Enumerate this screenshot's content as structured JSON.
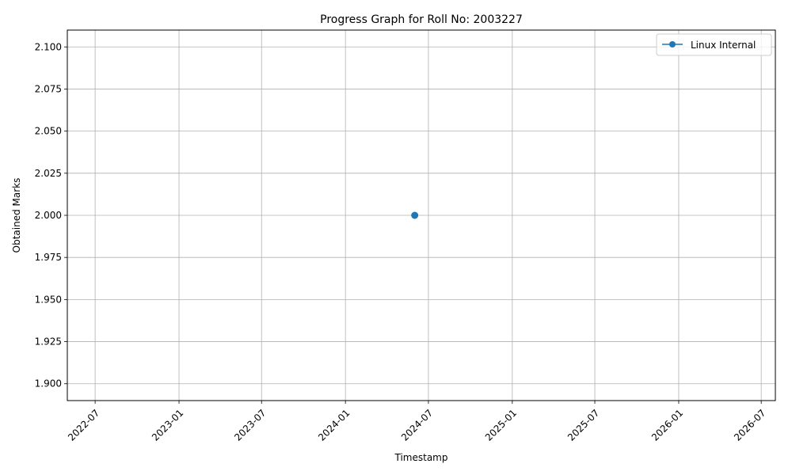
{
  "chart_data": {
    "type": "line",
    "title": "Progress Graph for Roll No: 2003227",
    "xlabel": "Timestamp",
    "ylabel": "Obtained Marks",
    "x_ticks": [
      "2022-07",
      "2023-01",
      "2023-07",
      "2024-01",
      "2024-07",
      "2025-01",
      "2025-07",
      "2026-01",
      "2026-07"
    ],
    "y_ticks": [
      "1.900",
      "1.925",
      "1.950",
      "1.975",
      "2.000",
      "2.025",
      "2.050",
      "2.075",
      "2.100"
    ],
    "xlim": [
      "2022-05-01",
      "2026-08-01"
    ],
    "ylim": [
      1.89,
      2.11
    ],
    "grid": true,
    "legend_position": "top-right",
    "series": [
      {
        "name": "Linux Internal",
        "color": "#1f77b4",
        "marker": "circle",
        "points": [
          {
            "x": "2024-06-01",
            "y": 2.0
          }
        ]
      }
    ]
  }
}
